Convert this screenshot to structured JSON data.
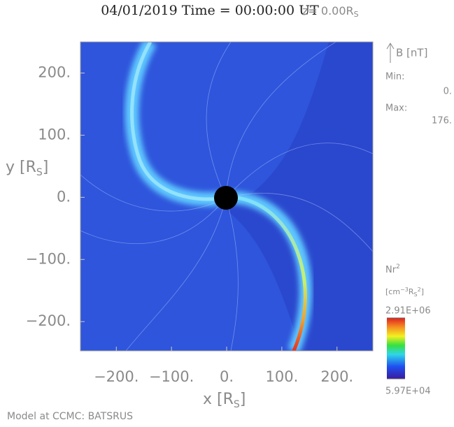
{
  "chart_data": {
    "type": "heatmap",
    "title": "04/01/2019 Time = 00:00:00 UT",
    "z_label": {
      "text": "z= 0.00R",
      "sub": "S"
    },
    "xlabel": {
      "text": "x [R",
      "sub": "S",
      "end": "]"
    },
    "ylabel": {
      "text": "y [R",
      "sub": "S",
      "end": "]"
    },
    "xlim": [
      -265,
      265
    ],
    "ylim": [
      -247,
      250
    ],
    "xticks": [
      {
        "value": -200,
        "label": "−200."
      },
      {
        "value": -100,
        "label": "−100."
      },
      {
        "value": 0,
        "label": "0."
      },
      {
        "value": 100,
        "label": "100."
      },
      {
        "value": 200,
        "label": "200."
      }
    ],
    "yticks": [
      {
        "value": 200,
        "label": "200."
      },
      {
        "value": 100,
        "label": "100."
      },
      {
        "value": 0,
        "label": "0."
      },
      {
        "value": -100,
        "label": "−100."
      },
      {
        "value": -200,
        "label": "−200."
      }
    ],
    "vector_legend": {
      "label": "B [nT]",
      "min_label": "Min:",
      "min": {
        "value": 0,
        "label": "0."
      },
      "max_label": "Max:",
      "max": {
        "value": 176,
        "label": "176."
      }
    },
    "colorbar": {
      "label": {
        "text": "Nr",
        "sup": "2"
      },
      "units": [
        "[cm",
        "−3",
        "R",
        "S",
        "2",
        "]"
      ],
      "lim": [
        {
          "value": 59700,
          "label": "5.97E+04"
        },
        {
          "value": 2910000,
          "label": "2.91E+06"
        }
      ]
    },
    "footer": "Model at CCMC: BATSRUS"
  }
}
